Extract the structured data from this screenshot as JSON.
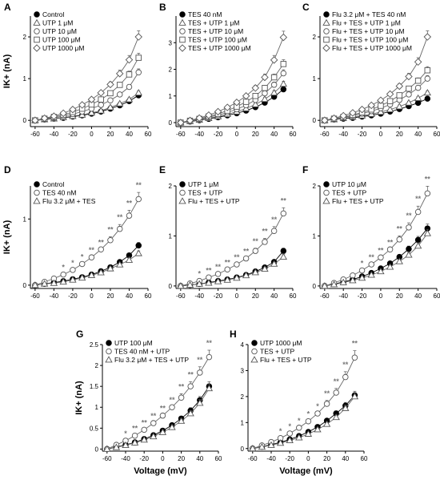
{
  "chart_data": [
    {
      "id": "A",
      "type": "line",
      "letter": "A",
      "xlim": [
        -65,
        60
      ],
      "ylim": [
        -0.15,
        2.5
      ],
      "xticks": [
        -60,
        -40,
        -20,
        0,
        20,
        40,
        60
      ],
      "yticks": [
        0,
        1,
        2
      ],
      "ylabel": "IK+ (nA)",
      "xlabel": "",
      "x": [
        -60,
        -50,
        -40,
        -30,
        -20,
        -10,
        0,
        10,
        20,
        30,
        40,
        50
      ],
      "series": [
        {
          "name": "Control",
          "marker": "circle-filled",
          "values": [
            0,
            0.02,
            0.04,
            0.06,
            0.09,
            0.12,
            0.16,
            0.21,
            0.28,
            0.36,
            0.46,
            0.6
          ]
        },
        {
          "name": "UTP 1 μM",
          "marker": "triangle",
          "values": [
            0,
            0.02,
            0.04,
            0.07,
            0.1,
            0.13,
            0.18,
            0.23,
            0.31,
            0.4,
            0.5,
            0.66
          ]
        },
        {
          "name": "UTP 10 μM",
          "marker": "circle-open",
          "values": [
            0,
            0.03,
            0.06,
            0.1,
            0.15,
            0.21,
            0.28,
            0.37,
            0.48,
            0.62,
            0.8,
            1.15
          ]
        },
        {
          "name": "UTP 100 μM",
          "marker": "square-open",
          "values": [
            0,
            0.04,
            0.08,
            0.13,
            0.2,
            0.28,
            0.38,
            0.5,
            0.65,
            0.85,
            1.1,
            1.5
          ]
        },
        {
          "name": "UTP 1000 μM",
          "marker": "diamond-open",
          "values": [
            0,
            0.05,
            0.1,
            0.17,
            0.26,
            0.37,
            0.5,
            0.66,
            0.86,
            1.12,
            1.45,
            2.0
          ]
        }
      ],
      "annotations": []
    },
    {
      "id": "B",
      "type": "line",
      "letter": "B",
      "xlim": [
        -65,
        60
      ],
      "ylim": [
        -0.15,
        4.0
      ],
      "xticks": [
        -60,
        -40,
        -20,
        0,
        20,
        40,
        60
      ],
      "yticks": [
        0,
        1,
        2,
        3
      ],
      "ylabel": "",
      "xlabel": "",
      "x": [
        -60,
        -50,
        -40,
        -30,
        -20,
        -10,
        0,
        10,
        20,
        30,
        40,
        50
      ],
      "series": [
        {
          "name": "TES 40 nM",
          "marker": "circle-filled",
          "values": [
            0,
            0.04,
            0.09,
            0.14,
            0.2,
            0.27,
            0.35,
            0.45,
            0.58,
            0.75,
            0.97,
            1.25
          ]
        },
        {
          "name": "TES + UTP 1 μM",
          "marker": "triangle",
          "values": [
            0,
            0.05,
            0.1,
            0.16,
            0.23,
            0.31,
            0.41,
            0.53,
            0.68,
            0.88,
            1.12,
            1.45
          ]
        },
        {
          "name": "TES + UTP 10 μM",
          "marker": "circle-open",
          "values": [
            0,
            0.06,
            0.12,
            0.2,
            0.28,
            0.38,
            0.5,
            0.65,
            0.85,
            1.1,
            1.42,
            1.85
          ]
        },
        {
          "name": "TES + UTP 100 μM",
          "marker": "square-open",
          "values": [
            0,
            0.07,
            0.14,
            0.23,
            0.33,
            0.45,
            0.6,
            0.78,
            1.0,
            1.3,
            1.7,
            2.2
          ]
        },
        {
          "name": "TES + UTP 1000 μM",
          "marker": "diamond-open",
          "values": [
            0,
            0.08,
            0.17,
            0.28,
            0.41,
            0.57,
            0.76,
            1.0,
            1.3,
            1.7,
            2.35,
            3.2
          ]
        }
      ],
      "annotations": []
    },
    {
      "id": "C",
      "type": "line",
      "letter": "C",
      "xlim": [
        -65,
        60
      ],
      "ylim": [
        -0.15,
        2.5
      ],
      "xticks": [
        -60,
        -40,
        -20,
        0,
        20,
        40,
        60
      ],
      "yticks": [
        0,
        1,
        2
      ],
      "ylabel": "",
      "xlabel": "",
      "x": [
        -60,
        -50,
        -40,
        -30,
        -20,
        -10,
        0,
        10,
        20,
        30,
        40,
        50
      ],
      "series": [
        {
          "name": "Flu 3.2 μM + TES 40 nM",
          "marker": "circle-filled",
          "values": [
            0,
            0.02,
            0.04,
            0.06,
            0.09,
            0.12,
            0.16,
            0.21,
            0.27,
            0.34,
            0.42,
            0.52
          ]
        },
        {
          "name": "Flu + TES + UTP 1 μM",
          "marker": "triangle",
          "values": [
            0,
            0.02,
            0.05,
            0.08,
            0.11,
            0.15,
            0.2,
            0.26,
            0.33,
            0.42,
            0.53,
            0.66
          ]
        },
        {
          "name": "Flu + TES + UTP 10 μM",
          "marker": "circle-open",
          "values": [
            0,
            0.03,
            0.07,
            0.11,
            0.16,
            0.22,
            0.29,
            0.38,
            0.49,
            0.62,
            0.78,
            1.0
          ]
        },
        {
          "name": "Flu + TES + UTP 100 μM",
          "marker": "square-open",
          "values": [
            0,
            0.04,
            0.08,
            0.13,
            0.19,
            0.26,
            0.35,
            0.46,
            0.6,
            0.76,
            0.95,
            1.2
          ]
        },
        {
          "name": "Flu + TES + UTP 1000 μM",
          "marker": "diamond-open",
          "values": [
            0,
            0.05,
            0.11,
            0.18,
            0.26,
            0.36,
            0.48,
            0.63,
            0.82,
            1.05,
            1.4,
            2.0
          ]
        }
      ],
      "annotations": []
    },
    {
      "id": "D",
      "type": "line",
      "letter": "D",
      "xlim": [
        -65,
        60
      ],
      "ylim": [
        -0.05,
        1.5
      ],
      "xticks": [
        -60,
        -40,
        -20,
        0,
        20,
        40,
        60
      ],
      "yticks": [
        0,
        1
      ],
      "ylabel": "IK+ (nA)",
      "xlabel": "",
      "x": [
        -60,
        -50,
        -40,
        -30,
        -20,
        -10,
        0,
        10,
        20,
        30,
        40,
        50
      ],
      "series": [
        {
          "name": "Control",
          "marker": "circle-filled",
          "values": [
            0,
            0.02,
            0.04,
            0.06,
            0.09,
            0.12,
            0.16,
            0.21,
            0.27,
            0.35,
            0.45,
            0.6
          ]
        },
        {
          "name": "TES 40 nM",
          "marker": "circle-open",
          "values": [
            0,
            0.05,
            0.1,
            0.16,
            0.23,
            0.32,
            0.42,
            0.54,
            0.68,
            0.85,
            1.05,
            1.3
          ]
        },
        {
          "name": "Flu 3.2 μM + TES",
          "marker": "triangle",
          "values": [
            0,
            0.02,
            0.03,
            0.05,
            0.08,
            0.11,
            0.15,
            0.19,
            0.25,
            0.31,
            0.38,
            0.48
          ]
        }
      ],
      "annotations": [
        {
          "x": -30,
          "text": "*"
        },
        {
          "x": -20,
          "text": "*"
        },
        {
          "x": -10,
          "text": "*"
        },
        {
          "x": 0,
          "text": "**"
        },
        {
          "x": 10,
          "text": "**"
        },
        {
          "x": 20,
          "text": "**"
        },
        {
          "x": 30,
          "text": "**"
        },
        {
          "x": 40,
          "text": "**"
        },
        {
          "x": 50,
          "text": "**"
        }
      ]
    },
    {
      "id": "E",
      "type": "line",
      "letter": "E",
      "xlim": [
        -65,
        60
      ],
      "ylim": [
        -0.05,
        2.0
      ],
      "xticks": [
        -60,
        -40,
        -20,
        0,
        20,
        40,
        60
      ],
      "yticks": [
        0,
        1,
        2
      ],
      "ylabel": "",
      "xlabel": "",
      "x": [
        -60,
        -50,
        -40,
        -30,
        -20,
        -10,
        0,
        10,
        20,
        30,
        40,
        50
      ],
      "series": [
        {
          "name": "UTP 1 μM",
          "marker": "circle-filled",
          "values": [
            0,
            0.02,
            0.04,
            0.07,
            0.1,
            0.13,
            0.17,
            0.22,
            0.29,
            0.37,
            0.48,
            0.7
          ]
        },
        {
          "name": "TES + UTP",
          "marker": "circle-open",
          "values": [
            0,
            0.05,
            0.1,
            0.17,
            0.24,
            0.33,
            0.43,
            0.55,
            0.7,
            0.88,
            1.1,
            1.45
          ]
        },
        {
          "name": "Flu + TES + UTP",
          "marker": "triangle",
          "values": [
            0,
            0.02,
            0.04,
            0.06,
            0.09,
            0.12,
            0.16,
            0.21,
            0.27,
            0.34,
            0.44,
            0.58
          ]
        }
      ],
      "annotations": [
        {
          "x": -40,
          "text": "*"
        },
        {
          "x": -30,
          "text": "**"
        },
        {
          "x": -20,
          "text": "**"
        },
        {
          "x": -10,
          "text": "**"
        },
        {
          "x": 0,
          "text": "**"
        },
        {
          "x": 10,
          "text": "**"
        },
        {
          "x": 20,
          "text": "**"
        },
        {
          "x": 30,
          "text": "**"
        },
        {
          "x": 40,
          "text": "**"
        },
        {
          "x": 50,
          "text": "**"
        }
      ]
    },
    {
      "id": "F",
      "type": "line",
      "letter": "F",
      "xlim": [
        -65,
        60
      ],
      "ylim": [
        -0.05,
        2.0
      ],
      "xticks": [
        -60,
        -40,
        -20,
        0,
        20,
        40,
        60
      ],
      "yticks": [
        0,
        1,
        2
      ],
      "ylabel": "",
      "xlabel": "",
      "x": [
        -60,
        -50,
        -40,
        -30,
        -20,
        -10,
        0,
        10,
        20,
        30,
        40,
        50
      ],
      "series": [
        {
          "name": "UTP 10 μM",
          "marker": "circle-filled",
          "values": [
            0,
            0.04,
            0.08,
            0.13,
            0.19,
            0.26,
            0.35,
            0.45,
            0.58,
            0.74,
            0.92,
            1.15
          ]
        },
        {
          "name": "TES + UTP",
          "marker": "circle-open",
          "values": [
            0,
            0.06,
            0.13,
            0.21,
            0.31,
            0.43,
            0.57,
            0.73,
            0.93,
            1.17,
            1.48,
            1.85
          ]
        },
        {
          "name": "Flu + TES + UTP",
          "marker": "triangle",
          "values": [
            0,
            0.03,
            0.07,
            0.11,
            0.16,
            0.22,
            0.29,
            0.38,
            0.49,
            0.62,
            0.8,
            1.05
          ]
        }
      ],
      "annotations": [
        {
          "x": -20,
          "text": "*"
        },
        {
          "x": -10,
          "text": "**"
        },
        {
          "x": 0,
          "text": "**"
        },
        {
          "x": 10,
          "text": "**"
        },
        {
          "x": 20,
          "text": "**"
        },
        {
          "x": 30,
          "text": "**"
        },
        {
          "x": 40,
          "text": "**"
        },
        {
          "x": 50,
          "text": "**"
        }
      ]
    },
    {
      "id": "G",
      "type": "line",
      "letter": "G",
      "xlim": [
        -65,
        60
      ],
      "ylim": [
        -0.05,
        2.5
      ],
      "xticks": [
        -60,
        -40,
        -20,
        0,
        20,
        40,
        60
      ],
      "yticks": [
        0,
        0.5,
        1,
        1.5,
        2,
        2.5
      ],
      "ylabel": "IK+ (nA)",
      "xlabel": "Voltage (mV)",
      "x": [
        -60,
        -50,
        -40,
        -30,
        -20,
        -10,
        0,
        10,
        20,
        30,
        40,
        50
      ],
      "series": [
        {
          "name": "UTP 100 μM",
          "marker": "circle-filled",
          "values": [
            0,
            0.05,
            0.1,
            0.16,
            0.24,
            0.33,
            0.44,
            0.57,
            0.73,
            0.92,
            1.17,
            1.5
          ]
        },
        {
          "name": "TES 40 nM + UTP",
          "marker": "circle-open",
          "values": [
            0,
            0.1,
            0.2,
            0.32,
            0.46,
            0.62,
            0.8,
            1.0,
            1.23,
            1.5,
            1.83,
            2.2
          ]
        },
        {
          "name": "Flu 3.2 μM + TES + UTP",
          "marker": "triangle",
          "values": [
            0,
            0.04,
            0.09,
            0.15,
            0.22,
            0.3,
            0.4,
            0.52,
            0.67,
            0.85,
            1.1,
            1.45
          ]
        }
      ],
      "annotations": [
        {
          "x": -40,
          "text": "*"
        },
        {
          "x": -30,
          "text": "**"
        },
        {
          "x": -20,
          "text": "**"
        },
        {
          "x": -10,
          "text": "**"
        },
        {
          "x": 0,
          "text": "**"
        },
        {
          "x": 10,
          "text": "**"
        },
        {
          "x": 20,
          "text": "**"
        },
        {
          "x": 30,
          "text": "**"
        },
        {
          "x": 40,
          "text": "**"
        },
        {
          "x": 50,
          "text": "**"
        }
      ]
    },
    {
      "id": "H",
      "type": "line",
      "letter": "H",
      "xlim": [
        -65,
        60
      ],
      "ylim": [
        -0.1,
        4.0
      ],
      "xticks": [
        -60,
        -40,
        -20,
        0,
        20,
        40,
        60
      ],
      "yticks": [
        0,
        1,
        2,
        3,
        4
      ],
      "ylabel": "",
      "xlabel": "Voltage (mV)",
      "x": [
        -60,
        -50,
        -40,
        -30,
        -20,
        -10,
        0,
        10,
        20,
        30,
        40,
        50
      ],
      "series": [
        {
          "name": "UTP 1000 μM",
          "marker": "circle-filled",
          "values": [
            0,
            0.07,
            0.15,
            0.24,
            0.35,
            0.48,
            0.64,
            0.83,
            1.07,
            1.35,
            1.65,
            2.05
          ]
        },
        {
          "name": "TES + UTP",
          "marker": "circle-open",
          "values": [
            0,
            0.12,
            0.25,
            0.4,
            0.58,
            0.8,
            1.05,
            1.35,
            1.72,
            2.15,
            2.75,
            3.5
          ]
        },
        {
          "name": "Flu + TES + UTP",
          "marker": "triangle",
          "values": [
            0,
            0.06,
            0.13,
            0.21,
            0.31,
            0.42,
            0.56,
            0.73,
            0.94,
            1.2,
            1.55,
            2.0
          ]
        }
      ],
      "annotations": [
        {
          "x": -30,
          "text": "*"
        },
        {
          "x": -20,
          "text": "*"
        },
        {
          "x": -10,
          "text": "*"
        },
        {
          "x": 0,
          "text": "*"
        },
        {
          "x": 10,
          "text": "*"
        },
        {
          "x": 20,
          "text": "**"
        },
        {
          "x": 30,
          "text": "**"
        },
        {
          "x": 40,
          "text": "**"
        },
        {
          "x": 50,
          "text": "**"
        }
      ]
    }
  ]
}
